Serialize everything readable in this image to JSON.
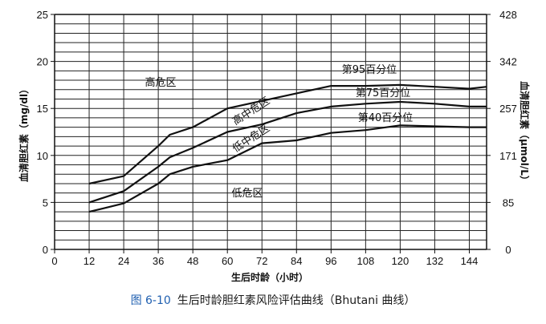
{
  "chart_data": {
    "type": "line",
    "title": "",
    "xlabel": "生后时龄（小时）",
    "ylabel": "血清胆红素（mg/dl）",
    "ylabel_right": "血清胆红素（μmol/L）",
    "x_ticks": [
      0,
      12,
      24,
      36,
      48,
      60,
      72,
      84,
      96,
      108,
      120,
      132,
      144
    ],
    "y_ticks": [
      0,
      5,
      10,
      15,
      20,
      25
    ],
    "y2_ticks": [
      0,
      85,
      171,
      257,
      342,
      428
    ],
    "xlim": [
      0,
      150
    ],
    "ylim": [
      0,
      25
    ],
    "grid": true,
    "series": [
      {
        "name": "第95百分位",
        "x": [
          12,
          24,
          36,
          40,
          48,
          60,
          72,
          84,
          96,
          108,
          120,
          132,
          144,
          150
        ],
        "y": [
          7.0,
          7.8,
          11.0,
          12.2,
          13.0,
          15.0,
          15.8,
          16.6,
          17.4,
          17.4,
          17.5,
          17.3,
          17.1,
          17.3
        ]
      },
      {
        "name": "第75百分位",
        "x": [
          12,
          24,
          36,
          40,
          48,
          60,
          72,
          84,
          96,
          108,
          120,
          132,
          144,
          150
        ],
        "y": [
          5.0,
          6.2,
          8.8,
          9.8,
          10.8,
          12.5,
          13.3,
          14.5,
          15.2,
          15.5,
          15.7,
          15.5,
          15.2,
          15.2
        ]
      },
      {
        "name": "第40百分位",
        "x": [
          12,
          24,
          36,
          40,
          48,
          60,
          72,
          84,
          96,
          108,
          120,
          132,
          144,
          150
        ],
        "y": [
          4.0,
          4.9,
          7.0,
          8.0,
          8.8,
          9.5,
          11.3,
          11.6,
          12.4,
          12.7,
          13.2,
          13.1,
          13.0,
          13.0
        ]
      }
    ],
    "annotations": [
      "高危区",
      "高中危区",
      "低中危区",
      "低危区"
    ]
  },
  "caption": {
    "figure_no": "图 6-10",
    "text": "生后时龄胆红素风险评估曲线（Bhutani 曲线）"
  }
}
